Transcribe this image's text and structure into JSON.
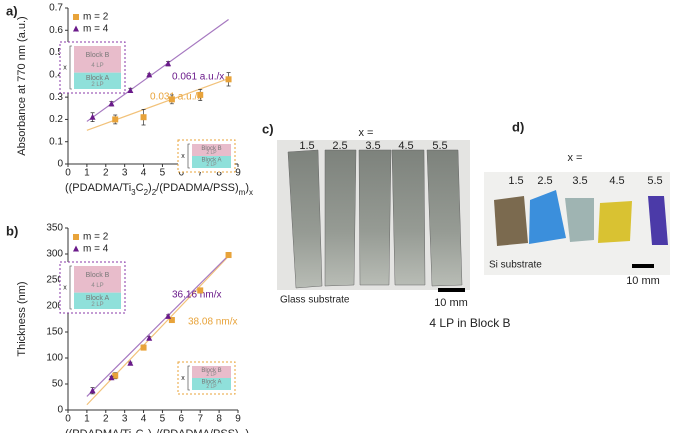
{
  "chart_data": [
    {
      "type": "scatter",
      "panel": "a)",
      "y_label": "Absorbance at 770 nm (a.u.)",
      "x_label": [
        "((PDADMA/Ti",
        "3",
        "C",
        "2",
        ")",
        "2",
        "/(PDADMA/PSS)",
        "m",
        ")",
        "x"
      ],
      "xlim": [
        0,
        9
      ],
      "xticks": [
        0,
        1,
        2,
        3,
        4,
        5,
        6,
        7,
        8,
        9
      ],
      "ylim": [
        0,
        0.7
      ],
      "yticks": [
        0,
        0.1,
        0.2,
        0.3,
        0.4,
        0.5,
        0.6,
        0.7
      ],
      "legend": "upper left",
      "series": [
        {
          "name": "m = 2",
          "color": "#e8a33a",
          "marker": "square",
          "x": [
            2.5,
            4,
            5.5,
            7,
            8.5
          ],
          "values": [
            0.2,
            0.21,
            0.29,
            0.31,
            0.38
          ],
          "errors": [
            0.02,
            0.035,
            0.02,
            0.025,
            0.03
          ]
        },
        {
          "name": "m = 4",
          "color": "#6a1a8a",
          "marker": "triangle",
          "x": [
            1.3,
            2.3,
            3.3,
            4.3,
            5.3
          ],
          "values": [
            0.21,
            0.27,
            0.33,
            0.4,
            0.45
          ],
          "errors": [
            0.02,
            0.01,
            0.01,
            0.005,
            0.01
          ]
        }
      ],
      "fits": [
        {
          "color": "#f2c27a",
          "slope": 0.031,
          "intercept": 0.12,
          "x_range": [
            1,
            8.5
          ],
          "label": "0.031 a.u./x",
          "label_color": "#e8a33a"
        },
        {
          "color": "#a678c0",
          "slope": 0.061,
          "intercept": 0.13,
          "x_range": [
            1,
            8.5
          ],
          "label": "0.061 a.u./x",
          "label_color": "#6a1a8a"
        }
      ],
      "insets": [
        {
          "block_b": "Block B",
          "block_b_lp": "4 LP",
          "block_a": "Block A",
          "block_a_lp": "2 LP",
          "repeat": "x",
          "color": "#8a3aa8"
        },
        {
          "block_b": "Block B",
          "block_b_lp": "2 LP",
          "block_a": "Block A",
          "block_a_lp": "2 LP",
          "repeat": "x",
          "color": "#e8a33a"
        }
      ]
    },
    {
      "type": "scatter",
      "panel": "b)",
      "y_label": "Thickness (nm)",
      "x_label": [
        "((PDADMA/Ti",
        "3",
        "C",
        "2",
        ")",
        "2",
        "/(PDADMA/PSS)",
        "m",
        ")",
        "x"
      ],
      "xlim": [
        0,
        9
      ],
      "xticks": [
        0,
        1,
        2,
        3,
        4,
        5,
        6,
        7,
        8,
        9
      ],
      "ylim": [
        0,
        350
      ],
      "yticks": [
        0,
        50,
        100,
        150,
        200,
        250,
        300,
        350
      ],
      "legend": "upper left",
      "series": [
        {
          "name": "m = 2",
          "color": "#e8a33a",
          "marker": "square",
          "x": [
            2.5,
            4,
            5.5,
            7,
            8.5
          ],
          "values": [
            66,
            120,
            173,
            230,
            298
          ],
          "errors": [
            6,
            5,
            4,
            5,
            5
          ]
        },
        {
          "name": "m = 4",
          "color": "#6a1a8a",
          "marker": "triangle",
          "x": [
            1.3,
            2.3,
            3.3,
            4.3,
            5.3
          ],
          "values": [
            37,
            62,
            90,
            138,
            180
          ],
          "errors": [
            6,
            3,
            2,
            3,
            3
          ]
        }
      ],
      "fits": [
        {
          "color": "#f2c27a",
          "slope": 38.08,
          "intercept": -28,
          "x_range": [
            1,
            8.5
          ],
          "label": "38.08 nm/x",
          "label_color": "#e8a33a"
        },
        {
          "color": "#a678c0",
          "slope": 36.16,
          "intercept": -10,
          "x_range": [
            1,
            8.5
          ],
          "label": "36.16 nm/x",
          "label_color": "#6a1a8a"
        }
      ],
      "insets": [
        {
          "block_b": "Block B",
          "block_b_lp": "4 LP",
          "block_a": "Block A",
          "block_a_lp": "2 LP",
          "repeat": "x",
          "color": "#8a3aa8"
        },
        {
          "block_b": "Block B",
          "block_b_lp": "2 LP",
          "block_a": "Block A",
          "block_a_lp": "2 LP",
          "repeat": "x",
          "color": "#e8a33a"
        }
      ]
    }
  ],
  "photos": [
    {
      "panel": "c)",
      "x_header": "x =",
      "x_values": [
        "1.5",
        "2.5",
        "3.5",
        "4.5",
        "5.5"
      ],
      "substrate": "Glass substrate",
      "scale_bar": "10 mm",
      "caption": "4 LP in Block B"
    },
    {
      "panel": "d)",
      "x_header": "x =",
      "x_values": [
        "1.5",
        "2.5",
        "3.5",
        "4.5",
        "5.5"
      ],
      "substrate": "Si substrate",
      "scale_bar": "10 mm"
    }
  ]
}
